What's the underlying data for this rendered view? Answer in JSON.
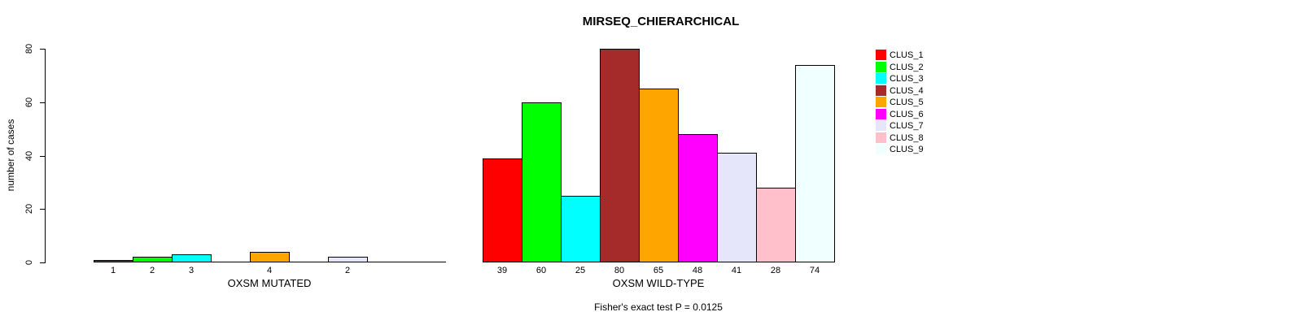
{
  "title": "MIRSEQ_CHIERARCHICAL",
  "footnote": "Fisher's exact test P = 0.0125",
  "y_axis": {
    "label": "number of cases",
    "ticks": [
      0,
      20,
      40,
      60,
      80
    ],
    "range": [
      0,
      80
    ]
  },
  "legend": {
    "position": "right",
    "items": [
      {
        "label": "CLUS_1",
        "color": "#FF0000"
      },
      {
        "label": "CLUS_2",
        "color": "#00FF00"
      },
      {
        "label": "CLUS_3",
        "color": "#00FFFF"
      },
      {
        "label": "CLUS_4",
        "color": "#A52A2A"
      },
      {
        "label": "CLUS_5",
        "color": "#FFA500"
      },
      {
        "label": "CLUS_6",
        "color": "#FF00FF"
      },
      {
        "label": "CLUS_7",
        "color": "#E6E6FA"
      },
      {
        "label": "CLUS_8",
        "color": "#FFC0CB"
      },
      {
        "label": "CLUS_9",
        "color": "#F0FFFF"
      }
    ]
  },
  "chart_data": [
    {
      "type": "bar",
      "group": "mutated",
      "xlabel": "OXSM MUTATED",
      "ylabel": "number of cases",
      "ylim": [
        0,
        80
      ],
      "categories": [
        "CLUS_1",
        "CLUS_2",
        "CLUS_3",
        "CLUS_4",
        "CLUS_5",
        "CLUS_6",
        "CLUS_7",
        "CLUS_8",
        "CLUS_9"
      ],
      "values": [
        1,
        2,
        3,
        0,
        4,
        0,
        2,
        0,
        0
      ],
      "bar_labels": [
        "1",
        "2",
        "3",
        "",
        "4",
        "",
        "2",
        "",
        ""
      ],
      "colors": [
        "#FF0000",
        "#00FF00",
        "#00FFFF",
        "#A52A2A",
        "#FFA500",
        "#FF00FF",
        "#E6E6FA",
        "#FFC0CB",
        "#F0FFFF"
      ],
      "grid": false
    },
    {
      "type": "bar",
      "group": "wild-type",
      "xlabel": "OXSM WILD-TYPE",
      "ylabel": "number of cases",
      "ylim": [
        0,
        80
      ],
      "categories": [
        "CLUS_1",
        "CLUS_2",
        "CLUS_3",
        "CLUS_4",
        "CLUS_5",
        "CLUS_6",
        "CLUS_7",
        "CLUS_8",
        "CLUS_9"
      ],
      "values": [
        39,
        60,
        25,
        80,
        65,
        48,
        41,
        28,
        74
      ],
      "bar_labels": [
        "39",
        "60",
        "25",
        "80",
        "65",
        "48",
        "41",
        "28",
        "74"
      ],
      "colors": [
        "#FF0000",
        "#00FF00",
        "#00FFFF",
        "#A52A2A",
        "#FFA500",
        "#FF00FF",
        "#E6E6FA",
        "#FFC0CB",
        "#F0FFFF"
      ],
      "grid": false
    }
  ]
}
